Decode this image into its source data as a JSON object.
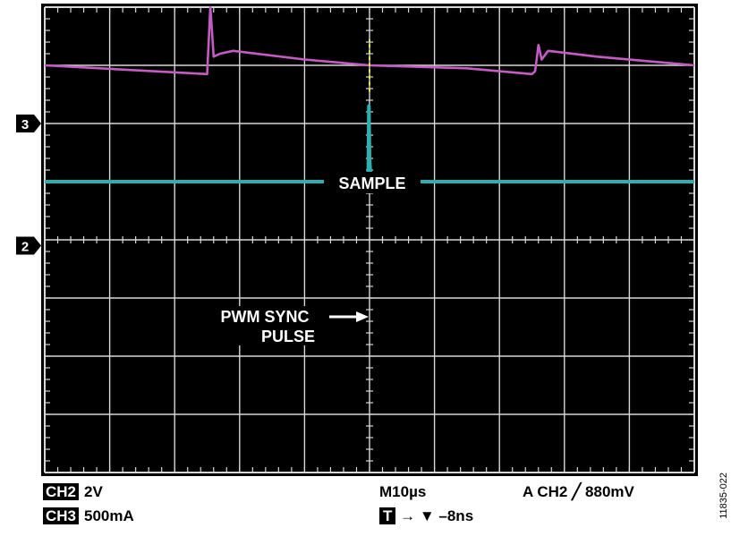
{
  "chart_data": {
    "type": "line",
    "grid": true,
    "divisions": {
      "x": 10,
      "y": 8
    },
    "x_range_div": [
      -5,
      5
    ],
    "y_range_div": [
      -4,
      4
    ],
    "colors": {
      "screen": "#000000",
      "grid": "#d8d8d8",
      "ch3": "#c45cc4",
      "ch2": "#2fb0b0",
      "sample_marker": "#e6e04a"
    },
    "series": [
      {
        "channel": "3",
        "unit_per_div": "500mA",
        "points_div": [
          [
            -5.0,
            3.0
          ],
          [
            -2.5,
            2.85
          ],
          [
            -2.5,
            2.85
          ],
          [
            -2.45,
            4.0
          ],
          [
            -2.4,
            3.15
          ],
          [
            -2.3,
            3.2
          ],
          [
            -2.1,
            3.25
          ],
          [
            -1.0,
            3.1
          ],
          [
            0.0,
            3.0
          ],
          [
            1.5,
            2.95
          ],
          [
            2.5,
            2.85
          ],
          [
            2.55,
            2.9
          ],
          [
            2.6,
            3.35
          ],
          [
            2.65,
            3.1
          ],
          [
            2.75,
            3.25
          ],
          [
            3.5,
            3.15
          ],
          [
            5.0,
            3.0
          ]
        ]
      },
      {
        "channel": "2",
        "unit_per_div": "2V",
        "points_div": [
          [
            -5.0,
            1.0
          ],
          [
            -0.02,
            1.0
          ],
          [
            -0.01,
            2.3
          ],
          [
            0.0,
            1.4
          ],
          [
            0.02,
            1.0
          ],
          [
            5.0,
            1.0
          ]
        ]
      }
    ],
    "markers": [
      {
        "label": "3",
        "level_div": 2.0
      },
      {
        "label": "2",
        "level_div": -0.1
      }
    ],
    "annotations": {
      "sample": "SAMPLE",
      "pwm_line1": "PWM SYNC",
      "pwm_line2": "PULSE"
    }
  },
  "footer": {
    "ch2_tag": "CH2",
    "ch2_value": "2V",
    "ch3_tag": "CH3",
    "ch3_value": "500mA",
    "timebase": "M10µs",
    "trigger": "A  CH2  ╱  880mV",
    "t_tag": "T",
    "t_offset": "→ ▼ –8ns"
  },
  "figure_id": "11835-022"
}
